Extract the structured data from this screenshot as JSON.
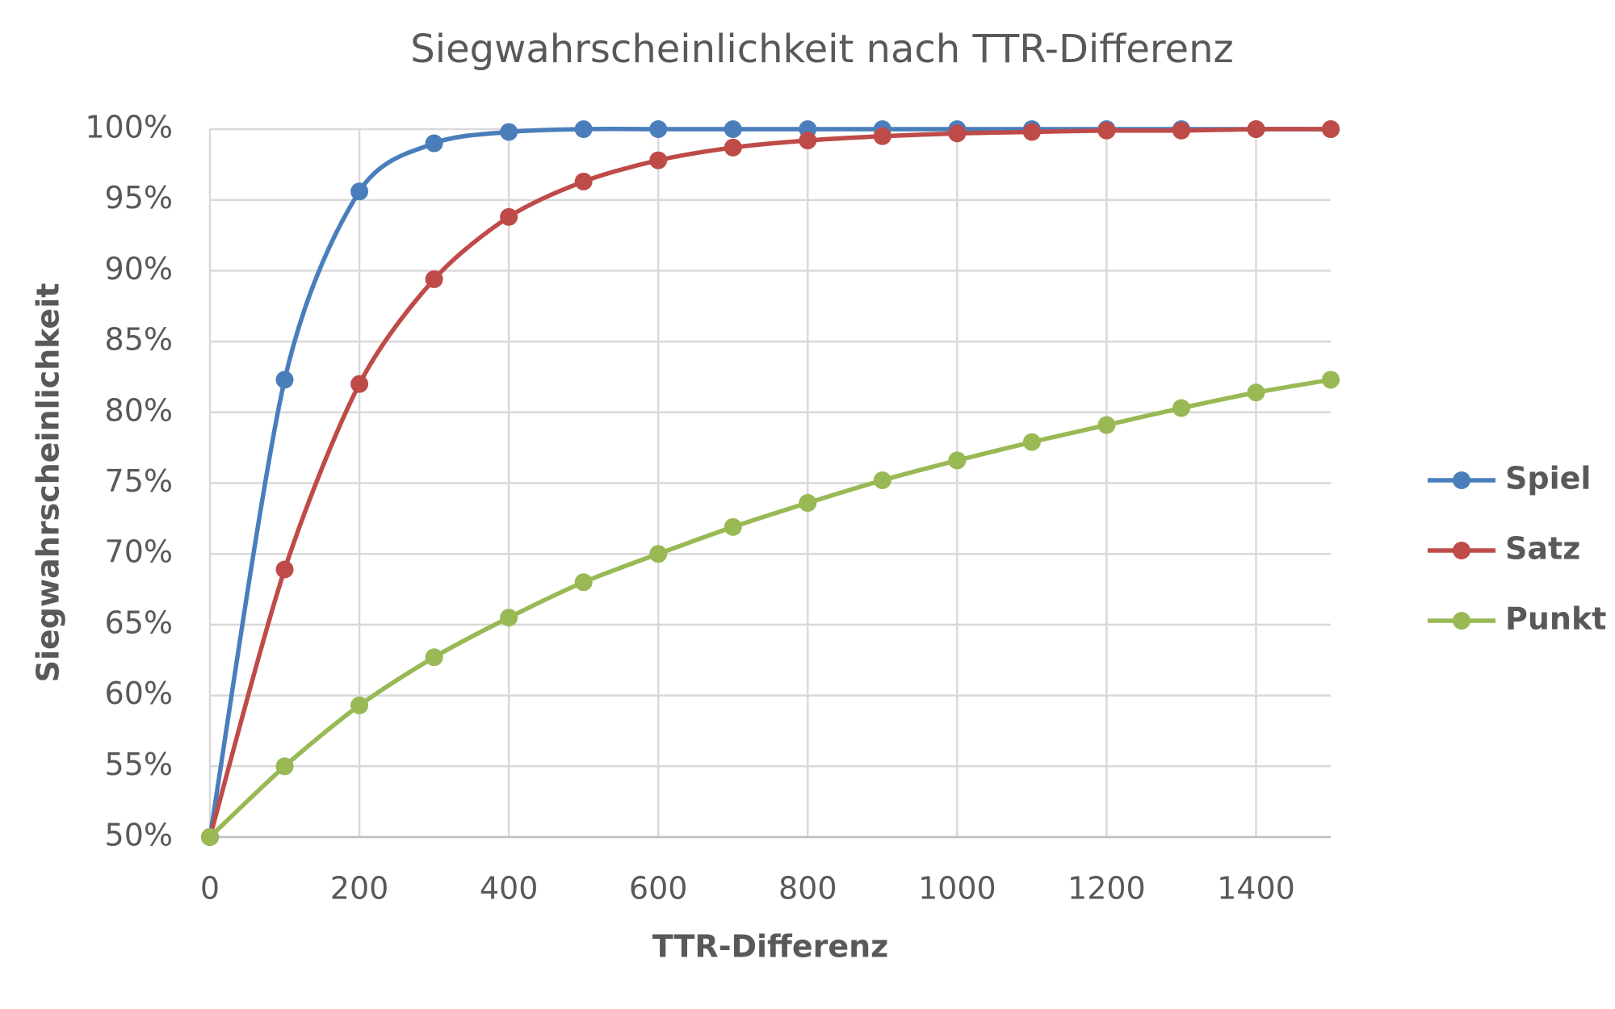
{
  "chart_data": {
    "type": "line",
    "title": "Siegwahrscheinlichkeit nach TTR-Differenz",
    "xlabel": "TTR-Differenz",
    "ylabel": "Siegwahrscheinlichkeit",
    "x": [
      0,
      100,
      200,
      300,
      400,
      500,
      600,
      700,
      800,
      900,
      1000,
      1100,
      1200,
      1300,
      1400,
      1500
    ],
    "series": [
      {
        "name": "Spiel",
        "color": "#4a7ebb",
        "values": [
          50,
          82.3,
          95.6,
          99.0,
          99.8,
          100,
          100,
          100,
          100,
          100,
          100,
          100,
          100,
          100,
          100,
          100
        ]
      },
      {
        "name": "Satz",
        "color": "#be4b48",
        "values": [
          50,
          68.9,
          82.0,
          89.4,
          93.8,
          96.3,
          97.8,
          98.7,
          99.2,
          99.5,
          99.7,
          99.8,
          99.9,
          99.9,
          100,
          100
        ]
      },
      {
        "name": "Punkt",
        "color": "#98b954",
        "values": [
          50,
          55.0,
          59.3,
          62.7,
          65.5,
          68.0,
          70.0,
          71.9,
          73.6,
          75.2,
          76.6,
          77.9,
          79.1,
          80.3,
          81.4,
          82.3
        ]
      }
    ],
    "xlim": [
      0,
      1500
    ],
    "xticks": [
      0,
      200,
      400,
      600,
      800,
      1000,
      1200,
      1400
    ],
    "ylim": [
      50,
      100
    ],
    "yticks": [
      {
        "value": 50,
        "label": "50%"
      },
      {
        "value": 55,
        "label": "55%"
      },
      {
        "value": 60,
        "label": "60%"
      },
      {
        "value": 65,
        "label": "65%"
      },
      {
        "value": 70,
        "label": "70%"
      },
      {
        "value": 75,
        "label": "75%"
      },
      {
        "value": 80,
        "label": "80%"
      },
      {
        "value": 85,
        "label": "85%"
      },
      {
        "value": 90,
        "label": "90%"
      },
      {
        "value": 95,
        "label": "95%"
      },
      {
        "value": 100,
        "label": "100%"
      }
    ],
    "grid": true,
    "legend": "right"
  }
}
